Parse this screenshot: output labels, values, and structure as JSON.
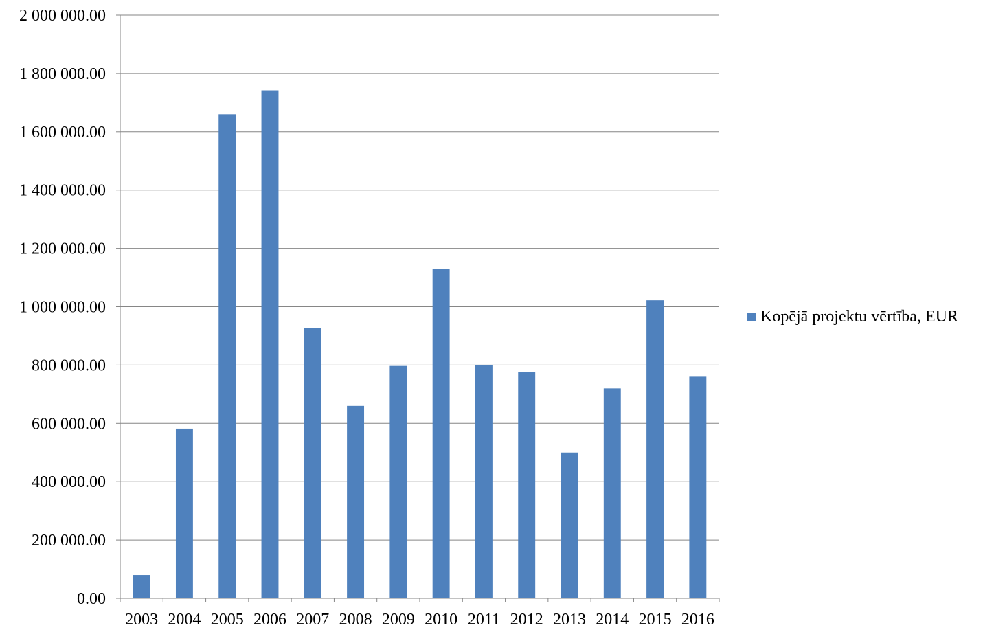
{
  "chart_data": {
    "type": "bar",
    "title": "",
    "xlabel": "",
    "ylabel": "",
    "categories": [
      "2003",
      "2004",
      "2005",
      "2006",
      "2007",
      "2008",
      "2009",
      "2010",
      "2011",
      "2012",
      "2013",
      "2014",
      "2015",
      "2016"
    ],
    "series": [
      {
        "name": "Kopējā projektu vērtība, EUR",
        "color": "#4F81BD",
        "values": [
          80000,
          582000,
          1660000,
          1742000,
          928000,
          660000,
          797000,
          1130000,
          801000,
          775000,
          500000,
          720000,
          1022000,
          760000
        ]
      }
    ],
    "ylim": [
      0,
      2000000
    ],
    "yticks": [
      0,
      200000,
      400000,
      600000,
      800000,
      1000000,
      1200000,
      1400000,
      1600000,
      1800000,
      2000000
    ],
    "ytick_labels": [
      "0.00",
      "200 000.00",
      "400 000.00",
      "600 000.00",
      "800 000.00",
      "1 000 000.00",
      "1 200 000.00",
      "1 400 000.00",
      "1 600 000.00",
      "1 800 000.00",
      "2 000 000.00"
    ],
    "grid": true,
    "legend_position": "right"
  }
}
